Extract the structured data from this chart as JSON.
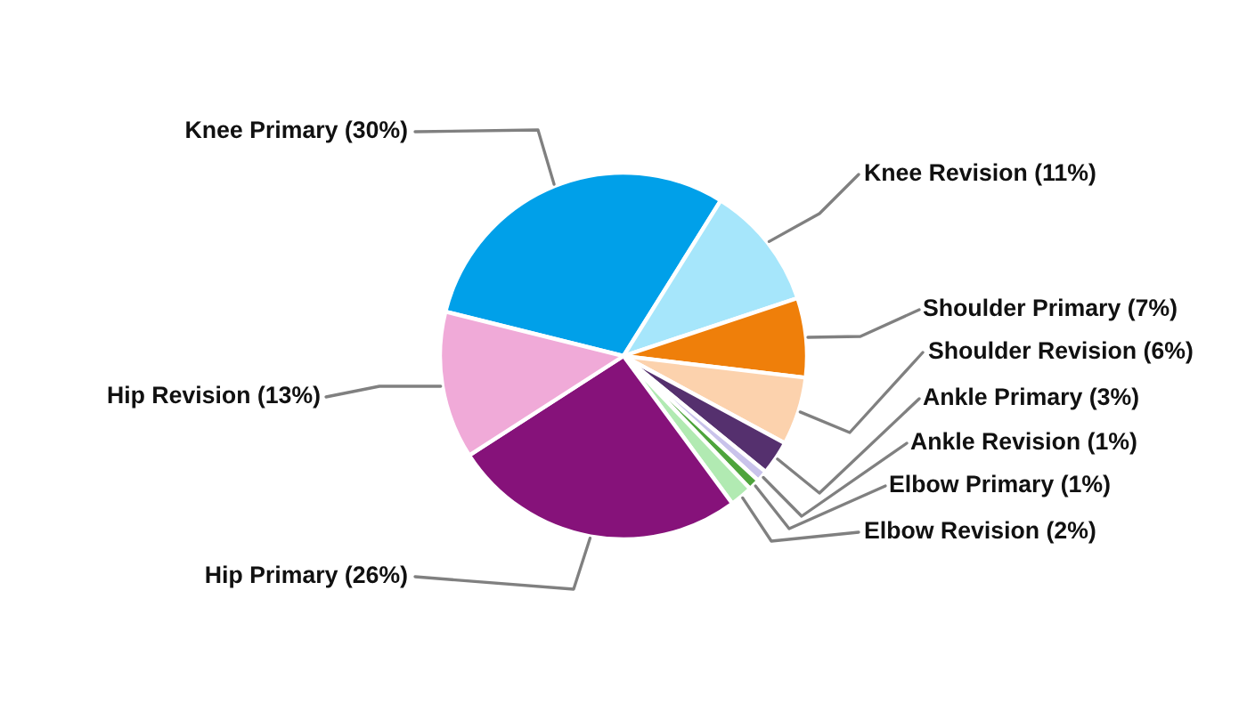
{
  "chart_data": {
    "type": "pie",
    "categories": [
      "Knee Primary (30%)",
      "Knee Revision (11%)",
      "Shoulder Primary (7%)",
      "Shoulder Revision (6%)",
      "Ankle Primary (3%)",
      "Ankle Revision (1%)",
      "Elbow Primary (1%)",
      "Elbow Revision (2%)",
      "Hip Primary (26%)",
      "Hip Revision (13%)"
    ],
    "values": [
      30,
      11,
      7,
      6,
      3,
      1,
      1,
      2,
      26,
      13
    ],
    "colors": [
      "#00a0e9",
      "#a6e6fb",
      "#ef7f0a",
      "#fcd2ad",
      "#55306e",
      "#c9c3eb",
      "#4ea43c",
      "#b1eab2",
      "#86127a",
      "#f0aad8"
    ]
  }
}
